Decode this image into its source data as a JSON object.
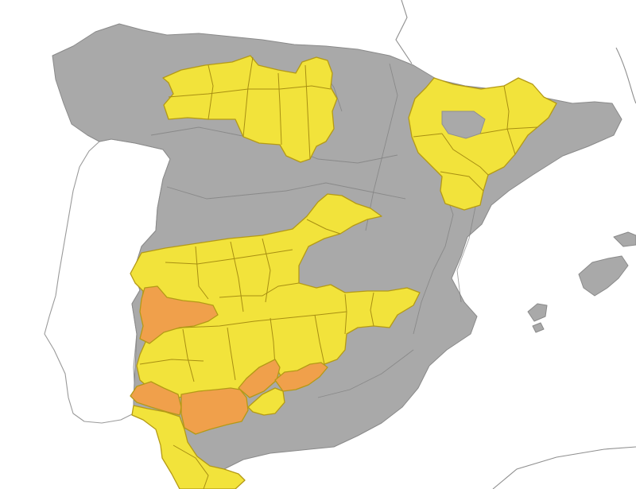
{
  "map": {
    "colors": {
      "sea": "#ffffff",
      "land_relief": "#a9a9a9",
      "border": "#8f8f8f",
      "warning_yellow": "#f2e33b",
      "warning_orange": "#f0a04b"
    },
    "warning_levels": [
      "yellow",
      "orange"
    ],
    "zones": {
      "north_yellow": "yellow",
      "aragon_yellow": "yellow",
      "center_south_yellow": "yellow",
      "extremadura_west_orange": "orange",
      "huelva_orange": "orange",
      "sevilla_orange": "orange",
      "jaen_orange": "orange",
      "granada_orange": "orange",
      "cadiz_strait_yellow": "yellow"
    }
  }
}
